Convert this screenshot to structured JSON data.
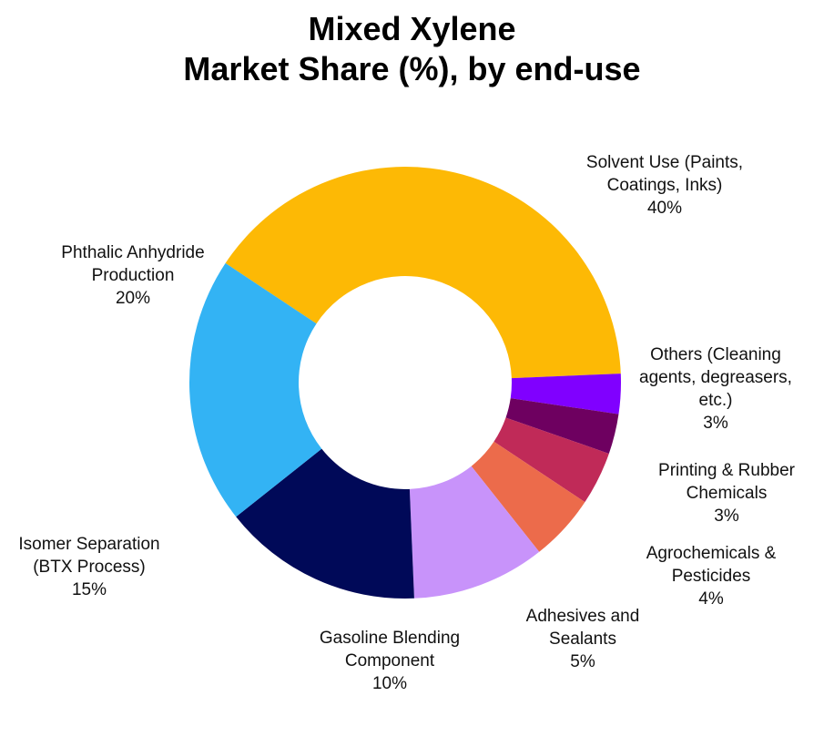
{
  "title": {
    "line1": "Mixed Xylene",
    "line2": "Market Share (%), by end-use"
  },
  "chart_data": {
    "type": "pie",
    "variant": "donut",
    "title": "Mixed Xylene Market Share (%), by end-use",
    "categories": [
      "Solvent Use (Paints, Coatings, Inks)",
      "Others (Cleaning agents, degreasers, etc.)",
      "Printing & Rubber Chemicals",
      "Agrochemicals & Pesticides",
      "Adhesives and Sealants",
      "Gasoline Blending Component",
      "Isomer Separation (BTX Process)",
      "Phthalic Anhydride Production"
    ],
    "values": [
      40,
      3,
      3,
      4,
      5,
      10,
      15,
      20
    ],
    "unit": "%",
    "colors": [
      "#FDB905",
      "#8000FF",
      "#6E0060",
      "#C02A58",
      "#EC6B4B",
      "#C893FA",
      "#000958",
      "#33B3F4"
    ],
    "legend": "none (direct labels)"
  },
  "labels": [
    {
      "line1": "Solvent Use (Paints,",
      "line2": "Coatings, Inks)",
      "value": "40%"
    },
    {
      "line1": "Others (Cleaning",
      "line2": "agents, degreasers,",
      "line3": "etc.)",
      "value": "3%"
    },
    {
      "line1": "Printing & Rubber",
      "line2": "Chemicals",
      "value": "3%"
    },
    {
      "line1": "Agrochemicals &",
      "line2": "Pesticides",
      "value": "4%"
    },
    {
      "line1": "Adhesives and",
      "line2": "Sealants",
      "value": "5%"
    },
    {
      "line1": "Gasoline Blending",
      "line2": "Component",
      "value": "10%"
    },
    {
      "line1": "Isomer Separation",
      "line2": "(BTX Process)",
      "value": "15%"
    },
    {
      "line1": "Phthalic Anhydride",
      "line2": "Production",
      "value": "20%"
    }
  ]
}
